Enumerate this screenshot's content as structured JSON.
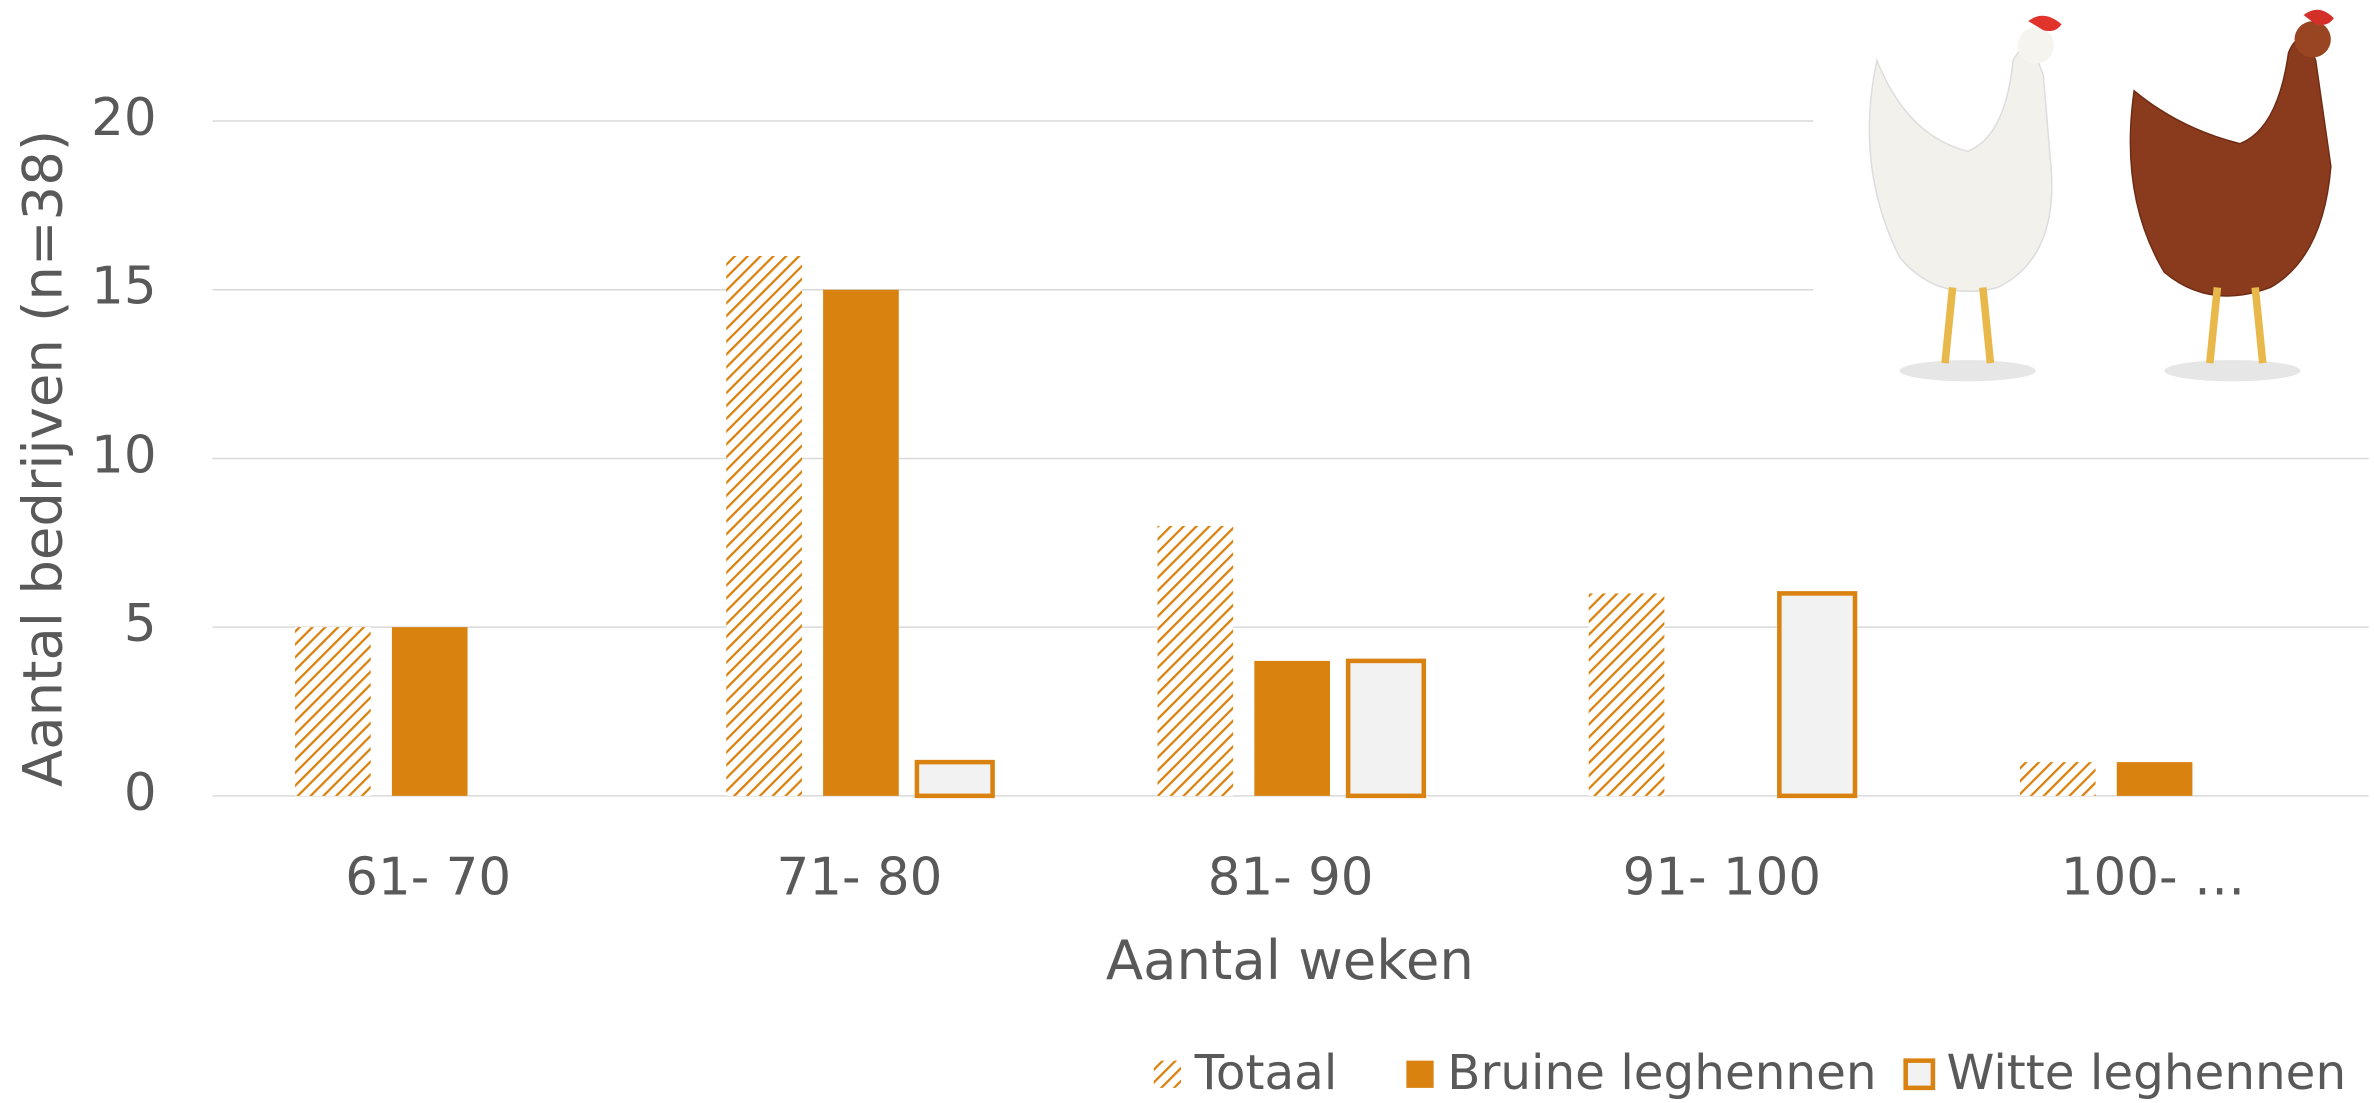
{
  "chart_data": {
    "type": "bar",
    "categories": [
      "61- 70",
      "71- 80",
      "81- 90",
      "91- 100",
      "100- …"
    ],
    "series": [
      {
        "name": "Totaal",
        "color": "#d9820f",
        "style": "hatched",
        "values": [
          5,
          16,
          8,
          6,
          1
        ]
      },
      {
        "name": "Bruine leghennen",
        "color": "#d9820f",
        "style": "solid",
        "values": [
          5,
          15,
          4,
          0,
          1
        ]
      },
      {
        "name": "Witte leghennen",
        "color": "#d9820f",
        "style": "outline",
        "values": [
          0,
          1,
          4,
          6,
          0
        ]
      }
    ],
    "x_label": "Aantal weken",
    "y_label": "Aantal bedrijven (n=38)",
    "ylim": [
      0,
      20
    ],
    "yticks": [
      0,
      5,
      10,
      15,
      20
    ],
    "grid": true,
    "legend": "bottom"
  }
}
